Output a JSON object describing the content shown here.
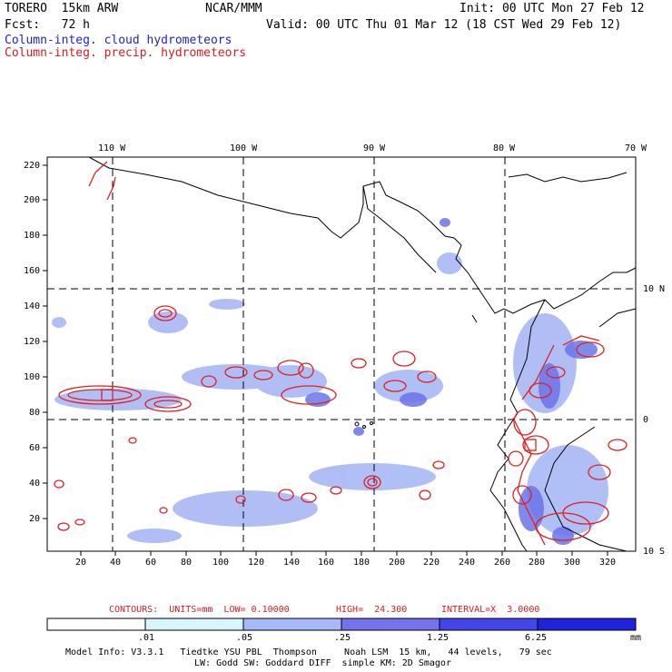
{
  "header": {
    "model": "TORERO  15km ARW",
    "center": "NCAR/MMM",
    "init": "Init: 00 UTC Mon 27 Feb 12",
    "fcst": "Fcst:   72 h",
    "valid": "Valid: 00 UTC Thu 01 Mar 12 (18 CST Wed 29 Feb 12)",
    "field1": "Column-integ. cloud hydrometeors",
    "field2": "Column-integ. precip. hydrometeors"
  },
  "map": {
    "top_lon_labels": [
      "110 W",
      "100 W",
      "90 W",
      "80 W",
      "70 W"
    ],
    "right_lat_labels": [
      "10 N",
      "0",
      "10 S"
    ],
    "left_ticks": [
      "220",
      "200",
      "180",
      "160",
      "140",
      "120",
      "100",
      "80",
      "60",
      "40",
      "20"
    ],
    "bottom_ticks": [
      "20",
      "40",
      "60",
      "80",
      "100",
      "120",
      "140",
      "160",
      "180",
      "200",
      "220",
      "240",
      "260",
      "280",
      "300",
      "320"
    ]
  },
  "contour_info": {
    "contours": "CONTOURS:  UNITS=mm  LOW= 0.10000",
    "high": "HIGH=  24.300",
    "interval": "INTERVAL=X  3.0000"
  },
  "legend": {
    "labels": [
      ".01",
      ".05",
      ".25",
      "1.25",
      "6.25"
    ],
    "unit": "mm",
    "colors": [
      "#ffffff",
      "#d8f4ff",
      "#a9b8f6",
      "#7373ee",
      "#4545ec",
      "#2121e0"
    ]
  },
  "footer": {
    "line1": "Model Info: V3.3.1   Tiedtke YSU PBL  Thompson     Noah LSM  15 km,   44 levels,   79 sec",
    "line2": "LW: Godd SW: Goddard DIFF  simple KM: 2D Smagor"
  },
  "colors": {
    "cloud": "#6b74e8",
    "precip": "#e02020",
    "border": "#000000"
  }
}
